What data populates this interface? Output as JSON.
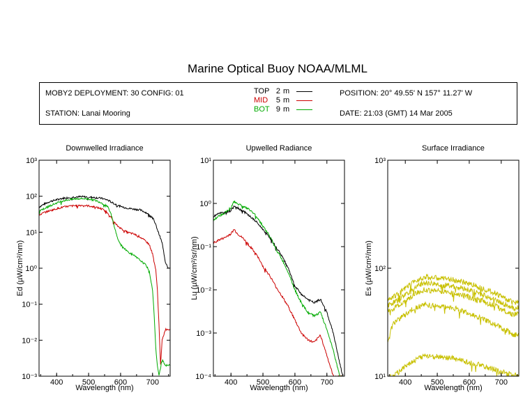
{
  "title": "Marine Optical Buoy NOAA/MLML",
  "header": {
    "deployment": "MOBY2 DEPLOYMENT: 30 CONFIG: 01",
    "station": "STATION: Lanai Mooring",
    "position": "POSITION: 20° 49.55' N   157° 11.27' W",
    "date": "DATE: 21:03 (GMT) 14 Mar 2005",
    "depths": [
      {
        "name": "TOP",
        "depth": "2",
        "unit": "m",
        "color": "#000000"
      },
      {
        "name": "MID",
        "depth": "5",
        "unit": "m",
        "color": "#cc0000"
      },
      {
        "name": "BOT",
        "depth": "9",
        "unit": "m",
        "color": "#00aa00"
      }
    ]
  },
  "chart_data": [
    {
      "type": "line",
      "title": "Downwelled Irradiance",
      "xlabel": "Wavelength (nm)",
      "ylabel": "Ed  (µW/cm²/nm)",
      "xlim": [
        345,
        755
      ],
      "ylim": [
        0.001,
        1000
      ],
      "yscale": "log",
      "xticks": [
        400,
        500,
        600,
        700
      ],
      "yticks": [
        "10⁻³",
        "10⁻²",
        "10⁻¹",
        "10⁰",
        "10¹",
        "10²",
        "10³"
      ],
      "series": [
        {
          "name": "TOP",
          "color": "#000000",
          "x": [
            345,
            360,
            380,
            400,
            420,
            440,
            460,
            480,
            500,
            520,
            540,
            560,
            580,
            600,
            620,
            640,
            660,
            680,
            700,
            710,
            720,
            730,
            740,
            750,
            755
          ],
          "y": [
            50,
            60,
            72,
            80,
            88,
            92,
            96,
            97,
            94,
            92,
            88,
            78,
            62,
            52,
            47,
            44,
            42,
            35,
            26,
            16,
            9,
            5,
            1.5,
            1.0,
            1.0
          ]
        },
        {
          "name": "MID",
          "color": "#cc0000",
          "x": [
            345,
            360,
            380,
            400,
            420,
            440,
            460,
            480,
            500,
            520,
            540,
            560,
            570,
            580,
            590,
            600,
            620,
            640,
            660,
            680,
            690,
            700,
            710,
            715,
            720,
            725,
            730,
            740,
            755
          ],
          "y": [
            30,
            35,
            40,
            45,
            50,
            53,
            55,
            56,
            54,
            50,
            45,
            35,
            26,
            19,
            15,
            13,
            10,
            9,
            7.5,
            5.5,
            4.5,
            2.5,
            0.9,
            0.25,
            0.03,
            0.002,
            0.01,
            0.02,
            0.02
          ]
        },
        {
          "name": "BOT",
          "color": "#00aa00",
          "x": [
            345,
            360,
            380,
            400,
            420,
            440,
            460,
            480,
            500,
            520,
            540,
            560,
            570,
            580,
            590,
            600,
            620,
            640,
            660,
            680,
            690,
            700,
            705,
            710,
            715,
            720,
            730,
            740,
            755
          ],
          "y": [
            40,
            45,
            55,
            65,
            75,
            80,
            85,
            86,
            84,
            77,
            66,
            50,
            32,
            15,
            7,
            4.5,
            3.0,
            2.3,
            1.7,
            1.2,
            0.8,
            0.25,
            0.05,
            0.006,
            0.002,
            0.001,
            0.003,
            0.002,
            0.002
          ]
        }
      ]
    },
    {
      "type": "line",
      "title": "Upwelled Radiance",
      "xlabel": "Wavelength (nm)",
      "ylabel": "Lu  (µW/cm²/sr/nm)",
      "xlim": [
        345,
        755
      ],
      "ylim": [
        0.0001,
        10
      ],
      "yscale": "log",
      "xticks": [
        400,
        500,
        600,
        700
      ],
      "yticks": [
        "10⁻⁴",
        "10⁻³",
        "10⁻²",
        "10⁻¹",
        "10⁰",
        "10¹"
      ],
      "series": [
        {
          "name": "TOP",
          "color": "#000000",
          "x": [
            345,
            360,
            380,
            400,
            410,
            420,
            440,
            460,
            480,
            500,
            520,
            540,
            560,
            580,
            600,
            620,
            640,
            660,
            680,
            700,
            720,
            740,
            750
          ],
          "y": [
            0.5,
            0.6,
            0.6,
            0.7,
            0.9,
            0.8,
            0.65,
            0.5,
            0.37,
            0.25,
            0.17,
            0.1,
            0.06,
            0.03,
            0.012,
            0.008,
            0.006,
            0.005,
            0.006,
            0.003,
            0.001,
            0.0002,
            0.0001
          ]
        },
        {
          "name": "MID",
          "color": "#cc0000",
          "x": [
            345,
            360,
            380,
            400,
            410,
            420,
            440,
            460,
            480,
            500,
            520,
            540,
            560,
            580,
            600,
            620,
            640,
            660,
            680,
            700,
            720,
            740,
            750
          ],
          "y": [
            0.12,
            0.14,
            0.16,
            0.2,
            0.25,
            0.2,
            0.15,
            0.1,
            0.065,
            0.035,
            0.022,
            0.012,
            0.007,
            0.004,
            0.002,
            0.001,
            0.0007,
            0.0006,
            0.0009,
            0.0003,
            0.0001,
            0.0001,
            0.0001
          ]
        },
        {
          "name": "BOT",
          "color": "#00aa00",
          "x": [
            345,
            360,
            380,
            400,
            410,
            420,
            440,
            460,
            480,
            500,
            520,
            540,
            560,
            580,
            600,
            620,
            640,
            660,
            680,
            700,
            720,
            740,
            750
          ],
          "y": [
            0.4,
            0.5,
            0.6,
            0.8,
            1.1,
            1.0,
            0.85,
            0.7,
            0.5,
            0.3,
            0.18,
            0.09,
            0.05,
            0.025,
            0.01,
            0.005,
            0.003,
            0.0025,
            0.003,
            0.0012,
            0.0004,
            0.0001,
            0.0001
          ]
        }
      ]
    },
    {
      "type": "line",
      "title": "Surface Irradiance",
      "xlabel": "Wavelength (nm)",
      "ylabel": "Es  (µW/cm²/nm)",
      "xlim": [
        345,
        755
      ],
      "ylim": [
        10,
        1000
      ],
      "yscale": "log",
      "xticks": [
        400,
        500,
        600,
        700
      ],
      "yticks": [
        "10¹",
        "10²",
        "10³"
      ],
      "series": [
        {
          "name": "",
          "color": "#c8c000",
          "x": [
            345,
            380,
            400,
            420,
            440,
            460,
            480,
            500,
            520,
            540,
            560,
            580,
            600,
            620,
            640,
            660,
            680,
            700,
            720,
            740,
            755
          ],
          "y": [
            52,
            58,
            65,
            72,
            79,
            83,
            82,
            81,
            80,
            79,
            77,
            74,
            72,
            69,
            66,
            62,
            59,
            55,
            51,
            48,
            50
          ]
        },
        {
          "name": "",
          "color": "#c8c000",
          "x": [
            345,
            380,
            400,
            420,
            440,
            460,
            480,
            500,
            520,
            540,
            560,
            580,
            600,
            620,
            640,
            660,
            680,
            700,
            720,
            740,
            755
          ],
          "y": [
            45,
            51,
            57,
            63,
            69,
            73,
            72,
            71,
            70,
            69,
            67,
            65,
            63,
            60,
            57,
            54,
            51,
            48,
            45,
            42,
            44
          ]
        },
        {
          "name": "",
          "color": "#c8c000",
          "x": [
            345,
            380,
            400,
            420,
            440,
            460,
            480,
            500,
            520,
            540,
            560,
            580,
            600,
            620,
            640,
            660,
            680,
            700,
            720,
            740,
            755
          ],
          "y": [
            40,
            45,
            50,
            55,
            60,
            63,
            62,
            62,
            61,
            60,
            58,
            56,
            54,
            52,
            50,
            47,
            45,
            42,
            39,
            37,
            38
          ]
        },
        {
          "name": "",
          "color": "#c8c000",
          "x": [
            345,
            360,
            380,
            400,
            420,
            440,
            460,
            480,
            500,
            520,
            540,
            560,
            580,
            600,
            620,
            640,
            660,
            680,
            700,
            720,
            740,
            755
          ],
          "y": [
            20,
            30,
            34,
            37,
            41,
            44,
            46,
            45,
            45,
            44,
            43,
            42,
            40,
            38,
            36,
            34,
            32,
            30,
            28,
            26,
            24,
            25
          ]
        },
        {
          "name": "",
          "color": "#c8c000",
          "x": [
            345,
            360,
            380,
            400,
            420,
            440,
            460,
            480,
            500,
            520,
            540,
            560,
            580,
            600,
            620,
            640,
            660,
            680,
            700,
            720,
            740,
            755
          ],
          "y": [
            10,
            10,
            11,
            12.5,
            13.5,
            14.5,
            15.5,
            15.3,
            15.2,
            15,
            14.7,
            14.3,
            13.9,
            13.4,
            13,
            12.5,
            12,
            11.5,
            11,
            10.6,
            10.2,
            10.3
          ]
        }
      ]
    }
  ]
}
